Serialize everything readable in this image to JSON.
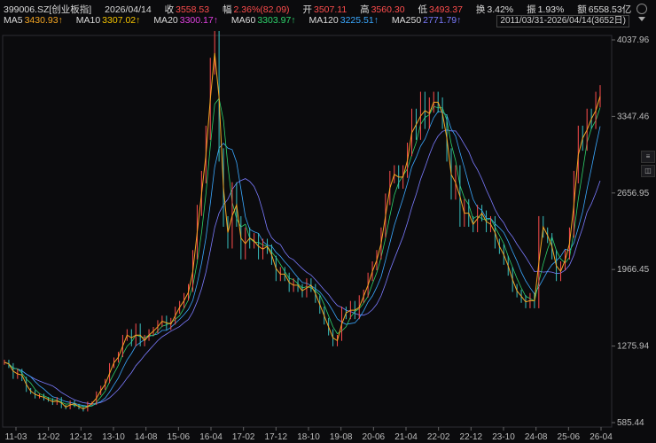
{
  "header": {
    "symbol": "399006.SZ[创业板指]",
    "date": "2026/04/14",
    "close_label": "收",
    "close": "3558.53",
    "change_label": "幅",
    "change": "2.36%(82.09)",
    "open_label": "开",
    "open": "3507.11",
    "high_label": "高",
    "high": "3560.30",
    "low_label": "低",
    "low": "3493.37",
    "turnover_label": "换",
    "turnover": "3.42%",
    "amplitude_label": "振",
    "amplitude": "1.93%",
    "amount_label": "额",
    "amount": "6558.53亿"
  },
  "ma": [
    {
      "label": "MA5",
      "value": "3430.93↑",
      "color": "#ffffff"
    },
    {
      "label": "MA10",
      "value": "3307.02↑",
      "color": "#f5c400"
    },
    {
      "label": "MA20",
      "value": "3300.17↑",
      "color": "#e040e0"
    },
    {
      "label": "MA60",
      "value": "3303.97↑",
      "color": "#2ed36b"
    },
    {
      "label": "MA120",
      "value": "3225.51↑",
      "color": "#3aa8ff"
    },
    {
      "label": "MA250",
      "value": "2771.79↑",
      "color": "#7b7bff"
    }
  ],
  "date_range": "2011/03/31-2026/04/14(3652日)",
  "icons": {
    "settings": "gear-icon",
    "dropdown": "chevron-down-icon"
  },
  "chart_data": {
    "type": "line",
    "y_ticks": [
      "4037.96",
      "3347.46",
      "2656.95",
      "1966.45",
      "1275.94",
      "585.44"
    ],
    "ylim": [
      585.44,
      4037.96
    ],
    "x_ticks": [
      "11-03",
      "12-02",
      "12-12",
      "13-10",
      "14-08",
      "15-06",
      "16-04",
      "17-02",
      "17-12",
      "18-10",
      "19-08",
      "20-06",
      "21-04",
      "22-02",
      "22-12",
      "23-10",
      "24-08",
      "25-06",
      "26-04"
    ],
    "series": [
      {
        "values": [
          1130,
          1100,
          1000,
          1050,
          980,
          880,
          860,
          820,
          830,
          800,
          790,
          760,
          800,
          730,
          720,
          770,
          740,
          720,
          700,
          760,
          760,
          850,
          900,
          960,
          1100,
          1150,
          1200,
          1350,
          1400,
          1300,
          1450,
          1300,
          1350,
          1400,
          1420,
          1480,
          1520,
          1450,
          1500,
          1600,
          1650,
          1720,
          1800,
          2100,
          2500,
          2800,
          3200,
          3800,
          4037,
          3000,
          2400,
          2200,
          2700,
          2400,
          2100,
          2300,
          2200,
          2250,
          2100,
          2200,
          2150,
          2050,
          1900,
          1950,
          1900,
          1800,
          1850,
          1800,
          1750,
          1850,
          1800,
          1700,
          1600,
          1500,
          1400,
          1300,
          1350,
          1600,
          1550,
          1650,
          1550,
          1700,
          1750,
          1900,
          2000,
          2100,
          2300,
          2600,
          2800,
          2850,
          2750,
          2850,
          3050,
          3350,
          3200,
          3500,
          3300,
          3450,
          3500,
          3450,
          3300,
          3000,
          2650,
          2850,
          2400,
          2550,
          2400,
          2350,
          2500,
          2450,
          2350,
          2400,
          2200,
          2150,
          2050,
          1950,
          1800,
          1750,
          1700,
          1650,
          1720,
          1650,
          2400,
          2300,
          2250,
          2100,
          1900,
          2000,
          2100,
          2300,
          2800,
          3200,
          3100,
          3350,
          3300,
          3500,
          3558
        ]
      }
    ]
  }
}
